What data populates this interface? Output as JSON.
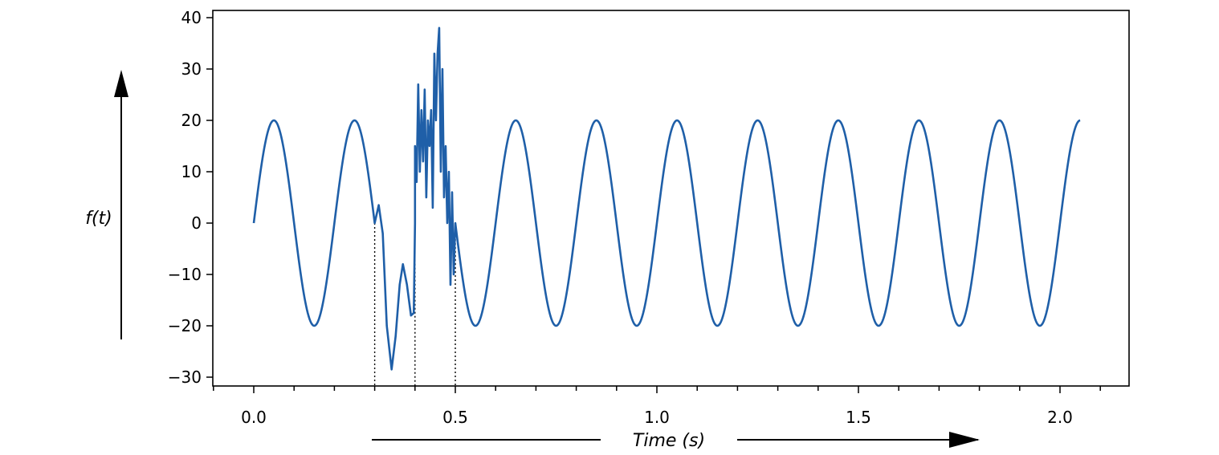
{
  "chart_data": {
    "type": "line",
    "title": "",
    "xlabel": "Time (s)",
    "ylabel": "f(t)",
    "xlim": [
      -0.2,
      2.15
    ],
    "ylim": [
      -32,
      41
    ],
    "xticks": [
      0.0,
      0.5,
      1.0,
      1.5,
      2.0
    ],
    "xtick_labels": [
      "0.0",
      "0.5",
      "1.0",
      "1.5",
      "2.0"
    ],
    "minor_xtick_step": 0.1,
    "yticks": [
      40,
      30,
      20,
      10,
      0,
      -10,
      -20,
      -30
    ],
    "ytick_labels": [
      "40",
      "30",
      "20",
      "10",
      "0",
      "−10",
      "−20",
      "−30"
    ],
    "grid": false,
    "line_color": "#1f5fa8",
    "series": [
      {
        "segments": [
          {
            "function": "20*sin(2*pi*5*t)",
            "t_range": [
              0.0,
              0.3
            ]
          },
          {
            "description_points": [
              [
                0.3,
                0.0
              ],
              [
                0.31,
                3.5
              ],
              [
                0.32,
                -2.0
              ],
              [
                0.33,
                -20.0
              ],
              [
                0.342,
                -28.5
              ],
              [
                0.352,
                -22.0
              ],
              [
                0.362,
                -12.0
              ],
              [
                0.37,
                -8.0
              ],
              [
                0.38,
                -12.0
              ],
              [
                0.39,
                -18.0
              ],
              [
                0.397,
                -17.5
              ],
              [
                0.4,
                0.0
              ]
            ]
          },
          {
            "description_points": [
              [
                0.4,
                15
              ],
              [
                0.404,
                8
              ],
              [
                0.408,
                27
              ],
              [
                0.412,
                10
              ],
              [
                0.416,
                22
              ],
              [
                0.42,
                12
              ],
              [
                0.424,
                26
              ],
              [
                0.428,
                5
              ],
              [
                0.432,
                20
              ],
              [
                0.436,
                15
              ],
              [
                0.44,
                22
              ],
              [
                0.444,
                3
              ],
              [
                0.448,
                33
              ],
              [
                0.452,
                20
              ],
              [
                0.456,
                33
              ],
              [
                0.46,
                38
              ],
              [
                0.464,
                10
              ],
              [
                0.468,
                30
              ],
              [
                0.472,
                5
              ],
              [
                0.476,
                15
              ],
              [
                0.48,
                0
              ],
              [
                0.484,
                10
              ],
              [
                0.488,
                -12
              ],
              [
                0.492,
                6
              ],
              [
                0.496,
                -10
              ],
              [
                0.5,
                0
              ]
            ]
          },
          {
            "function": "20*sin(2*pi*5*t)",
            "t_range": [
              0.5,
              2.05
            ]
          }
        ]
      }
    ],
    "annotations": {
      "dotted_vlines": [
        {
          "x": 0.3,
          "y_top": 0
        },
        {
          "x": 0.4,
          "y_top": 3
        },
        {
          "x": 0.5,
          "y_top": 0
        }
      ]
    }
  }
}
